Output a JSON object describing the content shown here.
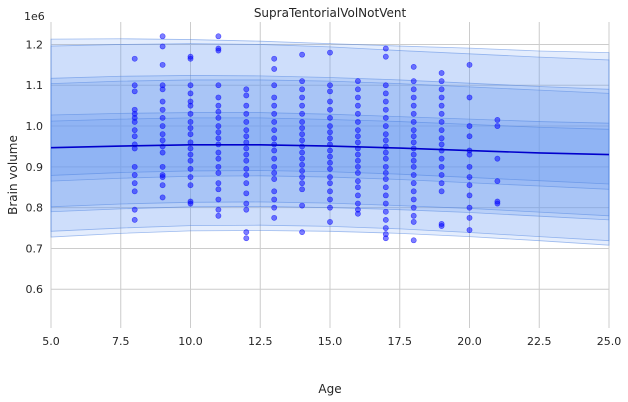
{
  "chart_data": {
    "type": "scatter",
    "title": "SupraTentorialVolNotVent",
    "xlabel": "Age",
    "ylabel": "Brain volume",
    "y_offset_label": "1e6",
    "xlim": [
      5.0,
      25.0
    ],
    "ylim": [
      0.505,
      1.255
    ],
    "x_ticks": [
      5.0,
      7.5,
      10.0,
      12.5,
      15.0,
      17.5,
      20.0,
      22.5,
      25.0
    ],
    "x_tick_labels": [
      "5.0",
      "7.5",
      "10.0",
      "12.5",
      "15.0",
      "17.5",
      "20.0",
      "22.5",
      "25.0"
    ],
    "y_ticks": [
      0.6,
      0.7,
      0.8,
      0.9,
      1.0,
      1.1,
      1.2
    ],
    "y_tick_labels": [
      "0.6",
      "0.7",
      "0.8",
      "0.9",
      "1.0",
      "1.1",
      "1.2"
    ],
    "grid": true,
    "colors": {
      "background": "#eaeaf2",
      "plot_background": "#ffffff",
      "grid": "#cccccc",
      "points": "#0000ff",
      "mean_line": "#0000cc",
      "band": "#6b9cf2"
    },
    "mean_curve": {
      "x": [
        5.0,
        7.5,
        10.0,
        12.5,
        15.0,
        17.5,
        20.0,
        22.5,
        25.0
      ],
      "y": [
        0.947,
        0.951,
        0.954,
        0.954,
        0.951,
        0.946,
        0.94,
        0.934,
        0.93
      ]
    },
    "bands": [
      {
        "name": "",
        "lower": [
          0.728,
          0.737,
          0.743,
          0.744,
          0.742,
          0.737,
          0.729,
          0.719,
          0.708
        ],
        "upper": [
          1.213,
          1.214,
          1.212,
          1.208,
          1.202,
          1.196,
          1.191,
          1.184,
          1.18
        ],
        "opacity": 0.18
      },
      {
        "name": "",
        "lower": [
          0.742,
          0.75,
          0.756,
          0.757,
          0.754,
          0.748,
          0.739,
          0.729,
          0.719
        ],
        "upper": [
          1.196,
          1.2,
          1.202,
          1.2,
          1.194,
          1.185,
          1.177,
          1.169,
          1.162
        ],
        "opacity": 0.18
      },
      {
        "name": "",
        "lower": [
          0.79,
          0.797,
          0.802,
          0.803,
          0.8,
          0.795,
          0.788,
          0.779,
          0.77
        ],
        "upper": [
          1.117,
          1.122,
          1.124,
          1.123,
          1.119,
          1.113,
          1.105,
          1.097,
          1.09
        ],
        "opacity": 0.2
      },
      {
        "name": "",
        "lower": [
          0.802,
          0.809,
          0.813,
          0.814,
          0.811,
          0.805,
          0.798,
          0.789,
          0.78
        ],
        "upper": [
          1.104,
          1.11,
          1.113,
          1.113,
          1.11,
          1.104,
          1.096,
          1.088,
          1.08
        ],
        "opacity": 0.2
      },
      {
        "name": "",
        "lower": [
          0.865,
          0.872,
          0.877,
          0.878,
          0.875,
          0.869,
          0.861,
          0.853,
          0.845
        ],
        "upper": [
          1.027,
          1.031,
          1.033,
          1.033,
          1.029,
          1.023,
          1.017,
          1.011,
          1.007
        ],
        "opacity": 0.22
      },
      {
        "name": "",
        "lower": [
          0.879,
          0.886,
          0.89,
          0.891,
          0.888,
          0.882,
          0.874,
          0.866,
          0.858
        ],
        "upper": [
          1.012,
          1.017,
          1.02,
          1.02,
          1.016,
          1.011,
          1.004,
          0.997,
          0.992
        ],
        "opacity": 0.22
      }
    ],
    "points": [
      [
        8,
        1.165
      ],
      [
        8,
        1.1
      ],
      [
        8,
        1.085
      ],
      [
        8,
        1.04
      ],
      [
        8,
        1.03
      ],
      [
        8,
        1.02
      ],
      [
        8,
        1.01
      ],
      [
        8,
        0.99
      ],
      [
        8,
        0.975
      ],
      [
        8,
        0.955
      ],
      [
        8,
        0.945
      ],
      [
        8,
        0.9
      ],
      [
        8,
        0.88
      ],
      [
        8,
        0.86
      ],
      [
        8,
        0.84
      ],
      [
        8,
        0.795
      ],
      [
        8,
        0.77
      ],
      [
        9,
        1.22
      ],
      [
        9,
        1.195
      ],
      [
        9,
        1.15
      ],
      [
        9,
        1.1
      ],
      [
        9,
        1.09
      ],
      [
        9,
        1.06
      ],
      [
        9,
        1.04
      ],
      [
        9,
        1.02
      ],
      [
        9,
        1.0
      ],
      [
        9,
        0.98
      ],
      [
        9,
        0.965
      ],
      [
        9,
        0.95
      ],
      [
        9,
        0.935
      ],
      [
        9,
        0.9
      ],
      [
        9,
        0.88
      ],
      [
        9,
        0.875
      ],
      [
        9,
        0.855
      ],
      [
        9,
        0.825
      ],
      [
        10,
        1.17
      ],
      [
        10,
        1.165
      ],
      [
        10,
        1.1
      ],
      [
        10,
        1.08
      ],
      [
        10,
        1.06
      ],
      [
        10,
        1.05
      ],
      [
        10,
        1.03
      ],
      [
        10,
        1.01
      ],
      [
        10,
        0.995
      ],
      [
        10,
        0.98
      ],
      [
        10,
        0.96
      ],
      [
        10,
        0.945
      ],
      [
        10,
        0.93
      ],
      [
        10,
        0.915
      ],
      [
        10,
        0.895
      ],
      [
        10,
        0.875
      ],
      [
        10,
        0.855
      ],
      [
        10,
        0.815
      ],
      [
        10,
        0.81
      ],
      [
        11,
        1.22
      ],
      [
        11,
        1.19
      ],
      [
        11,
        1.185
      ],
      [
        11,
        1.1
      ],
      [
        11,
        1.07
      ],
      [
        11,
        1.05
      ],
      [
        11,
        1.035
      ],
      [
        11,
        1.02
      ],
      [
        11,
        1.0
      ],
      [
        11,
        0.985
      ],
      [
        11,
        0.97
      ],
      [
        11,
        0.955
      ],
      [
        11,
        0.935
      ],
      [
        11,
        0.92
      ],
      [
        11,
        0.9
      ],
      [
        11,
        0.885
      ],
      [
        11,
        0.86
      ],
      [
        11,
        0.845
      ],
      [
        11,
        0.82
      ],
      [
        11,
        0.795
      ],
      [
        11,
        0.78
      ],
      [
        12,
        1.09
      ],
      [
        12,
        1.075
      ],
      [
        12,
        1.05
      ],
      [
        12,
        1.03
      ],
      [
        12,
        1.01
      ],
      [
        12,
        0.99
      ],
      [
        12,
        0.975
      ],
      [
        12,
        0.96
      ],
      [
        12,
        0.945
      ],
      [
        12,
        0.93
      ],
      [
        12,
        0.915
      ],
      [
        12,
        0.895
      ],
      [
        12,
        0.88
      ],
      [
        12,
        0.86
      ],
      [
        12,
        0.835
      ],
      [
        12,
        0.81
      ],
      [
        12,
        0.795
      ],
      [
        12,
        0.74
      ],
      [
        12,
        0.725
      ],
      [
        13,
        1.165
      ],
      [
        13,
        1.14
      ],
      [
        13,
        1.1
      ],
      [
        13,
        1.07
      ],
      [
        13,
        1.05
      ],
      [
        13,
        1.03
      ],
      [
        13,
        1.01
      ],
      [
        13,
        0.99
      ],
      [
        13,
        0.97
      ],
      [
        13,
        0.955
      ],
      [
        13,
        0.94
      ],
      [
        13,
        0.92
      ],
      [
        13,
        0.9
      ],
      [
        13,
        0.885
      ],
      [
        13,
        0.87
      ],
      [
        13,
        0.84
      ],
      [
        13,
        0.82
      ],
      [
        13,
        0.8
      ],
      [
        13,
        0.775
      ],
      [
        14,
        1.175
      ],
      [
        14,
        1.11
      ],
      [
        14,
        1.09
      ],
      [
        14,
        1.07
      ],
      [
        14,
        1.05
      ],
      [
        14,
        1.03
      ],
      [
        14,
        1.01
      ],
      [
        14,
        0.995
      ],
      [
        14,
        0.98
      ],
      [
        14,
        0.965
      ],
      [
        14,
        0.95
      ],
      [
        14,
        0.935
      ],
      [
        14,
        0.92
      ],
      [
        14,
        0.905
      ],
      [
        14,
        0.89
      ],
      [
        14,
        0.875
      ],
      [
        14,
        0.86
      ],
      [
        14,
        0.845
      ],
      [
        14,
        0.805
      ],
      [
        14,
        0.74
      ],
      [
        15,
        1.18
      ],
      [
        15,
        1.1
      ],
      [
        15,
        1.085
      ],
      [
        15,
        1.06
      ],
      [
        15,
        1.04
      ],
      [
        15,
        1.02
      ],
      [
        15,
        1.0
      ],
      [
        15,
        0.985
      ],
      [
        15,
        0.97
      ],
      [
        15,
        0.955
      ],
      [
        15,
        0.94
      ],
      [
        15,
        0.925
      ],
      [
        15,
        0.91
      ],
      [
        15,
        0.895
      ],
      [
        15,
        0.875
      ],
      [
        15,
        0.86
      ],
      [
        15,
        0.84
      ],
      [
        15,
        0.82
      ],
      [
        15,
        0.8
      ],
      [
        15,
        0.765
      ],
      [
        16,
        1.11
      ],
      [
        16,
        1.09
      ],
      [
        16,
        1.07
      ],
      [
        16,
        1.05
      ],
      [
        16,
        1.03
      ],
      [
        16,
        1.01
      ],
      [
        16,
        0.99
      ],
      [
        16,
        0.975
      ],
      [
        16,
        0.96
      ],
      [
        16,
        0.945
      ],
      [
        16,
        0.93
      ],
      [
        16,
        0.915
      ],
      [
        16,
        0.9
      ],
      [
        16,
        0.885
      ],
      [
        16,
        0.865
      ],
      [
        16,
        0.85
      ],
      [
        16,
        0.83
      ],
      [
        16,
        0.81
      ],
      [
        16,
        0.795
      ],
      [
        16,
        0.785
      ],
      [
        17,
        1.19
      ],
      [
        17,
        1.17
      ],
      [
        17,
        1.1
      ],
      [
        17,
        1.08
      ],
      [
        17,
        1.06
      ],
      [
        17,
        1.04
      ],
      [
        17,
        1.02
      ],
      [
        17,
        1.0
      ],
      [
        17,
        0.98
      ],
      [
        17,
        0.965
      ],
      [
        17,
        0.95
      ],
      [
        17,
        0.935
      ],
      [
        17,
        0.92
      ],
      [
        17,
        0.9
      ],
      [
        17,
        0.885
      ],
      [
        17,
        0.87
      ],
      [
        17,
        0.85
      ],
      [
        17,
        0.83
      ],
      [
        17,
        0.81
      ],
      [
        17,
        0.79
      ],
      [
        17,
        0.77
      ],
      [
        17,
        0.75
      ],
      [
        17,
        0.735
      ],
      [
        17,
        0.725
      ],
      [
        18,
        1.145
      ],
      [
        18,
        1.11
      ],
      [
        18,
        1.09
      ],
      [
        18,
        1.07
      ],
      [
        18,
        1.05
      ],
      [
        18,
        1.03
      ],
      [
        18,
        1.01
      ],
      [
        18,
        0.99
      ],
      [
        18,
        0.975
      ],
      [
        18,
        0.96
      ],
      [
        18,
        0.945
      ],
      [
        18,
        0.93
      ],
      [
        18,
        0.915
      ],
      [
        18,
        0.9
      ],
      [
        18,
        0.88
      ],
      [
        18,
        0.86
      ],
      [
        18,
        0.84
      ],
      [
        18,
        0.82
      ],
      [
        18,
        0.8
      ],
      [
        18,
        0.78
      ],
      [
        18,
        0.765
      ],
      [
        18,
        0.72
      ],
      [
        19,
        1.13
      ],
      [
        19,
        1.11
      ],
      [
        19,
        1.09
      ],
      [
        19,
        1.07
      ],
      [
        19,
        1.05
      ],
      [
        19,
        1.03
      ],
      [
        19,
        1.01
      ],
      [
        19,
        0.99
      ],
      [
        19,
        0.97
      ],
      [
        19,
        0.955
      ],
      [
        19,
        0.94
      ],
      [
        19,
        0.92
      ],
      [
        19,
        0.9
      ],
      [
        19,
        0.88
      ],
      [
        19,
        0.86
      ],
      [
        19,
        0.84
      ],
      [
        19,
        0.76
      ],
      [
        19,
        0.755
      ],
      [
        20,
        1.15
      ],
      [
        20,
        1.07
      ],
      [
        20,
        1.0
      ],
      [
        20,
        0.975
      ],
      [
        20,
        0.94
      ],
      [
        20,
        0.93
      ],
      [
        20,
        0.9
      ],
      [
        20,
        0.875
      ],
      [
        20,
        0.855
      ],
      [
        20,
        0.83
      ],
      [
        20,
        0.8
      ],
      [
        20,
        0.775
      ],
      [
        20,
        0.745
      ],
      [
        21,
        1.015
      ],
      [
        21,
        1.0
      ],
      [
        21,
        0.92
      ],
      [
        21,
        0.865
      ],
      [
        21,
        0.815
      ],
      [
        21,
        0.81
      ]
    ]
  }
}
